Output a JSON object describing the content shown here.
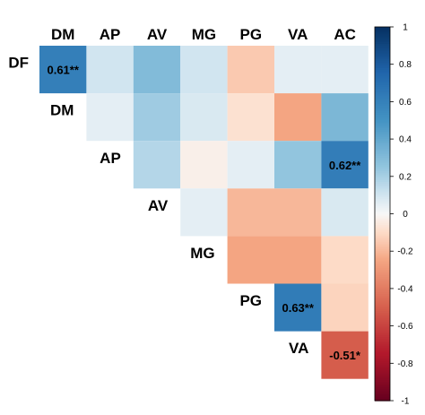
{
  "chart_data": {
    "type": "heatmap",
    "title": "",
    "columns": [
      "DM",
      "AP",
      "AV",
      "MG",
      "PG",
      "VA",
      "AC"
    ],
    "rows": [
      "DF",
      "DM",
      "AP",
      "AV",
      "MG",
      "PG",
      "VA"
    ],
    "shape": "upper-triangle",
    "cells": [
      {
        "row": "DF",
        "col": "DM",
        "value": 0.61,
        "label": "0.61**"
      },
      {
        "row": "DF",
        "col": "AP",
        "value": 0.1
      },
      {
        "row": "DF",
        "col": "AV",
        "value": 0.3
      },
      {
        "row": "DF",
        "col": "MG",
        "value": 0.1
      },
      {
        "row": "DF",
        "col": "PG",
        "value": -0.15
      },
      {
        "row": "DF",
        "col": "VA",
        "value": 0.05
      },
      {
        "row": "DF",
        "col": "AC",
        "value": 0.05
      },
      {
        "row": "DM",
        "col": "AP",
        "value": 0.05
      },
      {
        "row": "DM",
        "col": "AV",
        "value": 0.22
      },
      {
        "row": "DM",
        "col": "MG",
        "value": 0.08
      },
      {
        "row": "DM",
        "col": "PG",
        "value": -0.08
      },
      {
        "row": "DM",
        "col": "VA",
        "value": -0.25
      },
      {
        "row": "DM",
        "col": "AC",
        "value": 0.32
      },
      {
        "row": "AP",
        "col": "AV",
        "value": 0.17
      },
      {
        "row": "AP",
        "col": "MG",
        "value": -0.03
      },
      {
        "row": "AP",
        "col": "PG",
        "value": 0.05
      },
      {
        "row": "AP",
        "col": "VA",
        "value": 0.25
      },
      {
        "row": "AP",
        "col": "AC",
        "value": 0.62,
        "label": "0.62**"
      },
      {
        "row": "AV",
        "col": "MG",
        "value": 0.05
      },
      {
        "row": "AV",
        "col": "PG",
        "value": -0.2
      },
      {
        "row": "AV",
        "col": "VA",
        "value": -0.2
      },
      {
        "row": "AV",
        "col": "AC",
        "value": 0.08
      },
      {
        "row": "MG",
        "col": "PG",
        "value": -0.25
      },
      {
        "row": "MG",
        "col": "VA",
        "value": -0.25
      },
      {
        "row": "MG",
        "col": "AC",
        "value": -0.1
      },
      {
        "row": "PG",
        "col": "VA",
        "value": 0.63,
        "label": "0.63**"
      },
      {
        "row": "PG",
        "col": "AC",
        "value": -0.12
      },
      {
        "row": "VA",
        "col": "AC",
        "value": -0.51,
        "label": "-0.51*"
      }
    ],
    "colorbar": {
      "range": [
        -1,
        1
      ],
      "ticks": [
        1,
        0.8,
        0.6,
        0.4,
        0.2,
        0,
        -0.2,
        -0.4,
        -0.6,
        -0.8,
        -1
      ],
      "tick_labels": [
        "1",
        "0.8",
        "0.6",
        "0.4",
        "0.2",
        "0",
        "-0.2",
        "-0.4",
        "-0.6",
        "-0.8",
        "-1"
      ],
      "colors": {
        "negative": "#67001F",
        "mid_negative": "#D6604D",
        "neutral": "#F7F7F7",
        "mid_positive": "#4393C3",
        "positive": "#053061"
      }
    },
    "legend": "right",
    "grid": false
  }
}
